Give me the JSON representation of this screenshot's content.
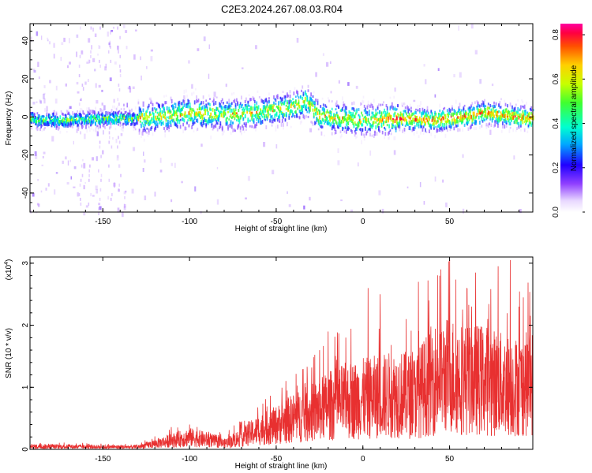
{
  "figure_title": "C2E3.2024.267.08.03.R04",
  "colors": {
    "snr_line": "#e83030",
    "frame": "#000000",
    "colorbar": [
      "#f0e6ff",
      "#c8a0ff",
      "#8040ff",
      "#2020ff",
      "#00aaff",
      "#00ffcc",
      "#40ff40",
      "#c0ff00",
      "#ffd000",
      "#ff6000",
      "#ff0040",
      "#ff00a0"
    ]
  },
  "chart_data": [
    {
      "type": "heatmap",
      "title": "",
      "xlabel": "Height of straight line (km)",
      "ylabel": "Frequency (Hz)",
      "xlim": [
        -192,
        98
      ],
      "ylim": [
        -50,
        49
      ],
      "xticks": [
        -150,
        -100,
        -50,
        0,
        50
      ],
      "xtick_labels": [
        "-150",
        "-100",
        "-50",
        "0",
        "50"
      ],
      "yticks": [
        -40,
        -20,
        0,
        20,
        40
      ],
      "ytick_labels": [
        "-40",
        "-20",
        "0",
        "20",
        "40"
      ],
      "colorbar": {
        "label": "Normalized spectral amplitude",
        "range": [
          0,
          0.85
        ],
        "ticks": [
          0.0,
          0.2,
          0.4,
          0.6,
          0.8
        ],
        "tick_labels": [
          "0.0",
          "0.2",
          "0.4",
          "0.6",
          "0.8"
        ]
      },
      "ridge_center_hz": [
        [
          -190,
          -1
        ],
        [
          -170,
          -1
        ],
        [
          -150,
          0
        ],
        [
          -130,
          0
        ],
        [
          -120,
          1
        ],
        [
          -100,
          3
        ],
        [
          -80,
          2
        ],
        [
          -60,
          3
        ],
        [
          -40,
          6
        ],
        [
          -33,
          9
        ],
        [
          -25,
          1
        ],
        [
          -10,
          0
        ],
        [
          0,
          -1
        ],
        [
          20,
          0
        ],
        [
          40,
          -1
        ],
        [
          60,
          1
        ],
        [
          70,
          3
        ],
        [
          98,
          0
        ]
      ]
    },
    {
      "type": "line",
      "title": "",
      "xlabel": "Height of straight line (km)",
      "ylabel": "SNR (10 * v/v)",
      "yscale_label": "(x10",
      "yscale_exp": "4",
      "yscale_close": ")",
      "xlim": [
        -192,
        98
      ],
      "ylim": [
        0,
        3.1
      ],
      "xticks": [
        -150,
        -100,
        -50,
        0,
        50
      ],
      "xtick_labels": [
        "-150",
        "-100",
        "-50",
        "0",
        "50"
      ],
      "yticks": [
        0,
        1,
        2,
        3
      ],
      "ytick_labels": [
        "0",
        "1",
        "2",
        "3"
      ],
      "series": [
        {
          "envelope_x": [
            -192,
            -150,
            -130,
            -115,
            -100,
            -90,
            -80,
            -70,
            -60,
            -50,
            -40,
            -30,
            -20,
            -10,
            0,
            10,
            20,
            30,
            40,
            50,
            60,
            70,
            80,
            90,
            98
          ],
          "envelope_y": [
            0.06,
            0.05,
            0.05,
            0.15,
            0.25,
            0.2,
            0.12,
            0.25,
            0.4,
            0.5,
            0.65,
            0.75,
            0.9,
            1.0,
            1.05,
            1.1,
            1.15,
            1.1,
            1.45,
            1.55,
            1.45,
            1.45,
            1.35,
            1.3,
            1.4
          ],
          "peaks_x": [
            -100,
            -70,
            -25,
            -20,
            3,
            10,
            25,
            32,
            38,
            45,
            50,
            60,
            65,
            72,
            78,
            85,
            90
          ],
          "peaks_y": [
            0.4,
            0.45,
            1.6,
            1.9,
            2.6,
            2.5,
            2.1,
            2.7,
            2.4,
            2.9,
            3.05,
            2.6,
            2.85,
            2.1,
            2.95,
            3.05,
            2.3
          ]
        }
      ]
    }
  ]
}
